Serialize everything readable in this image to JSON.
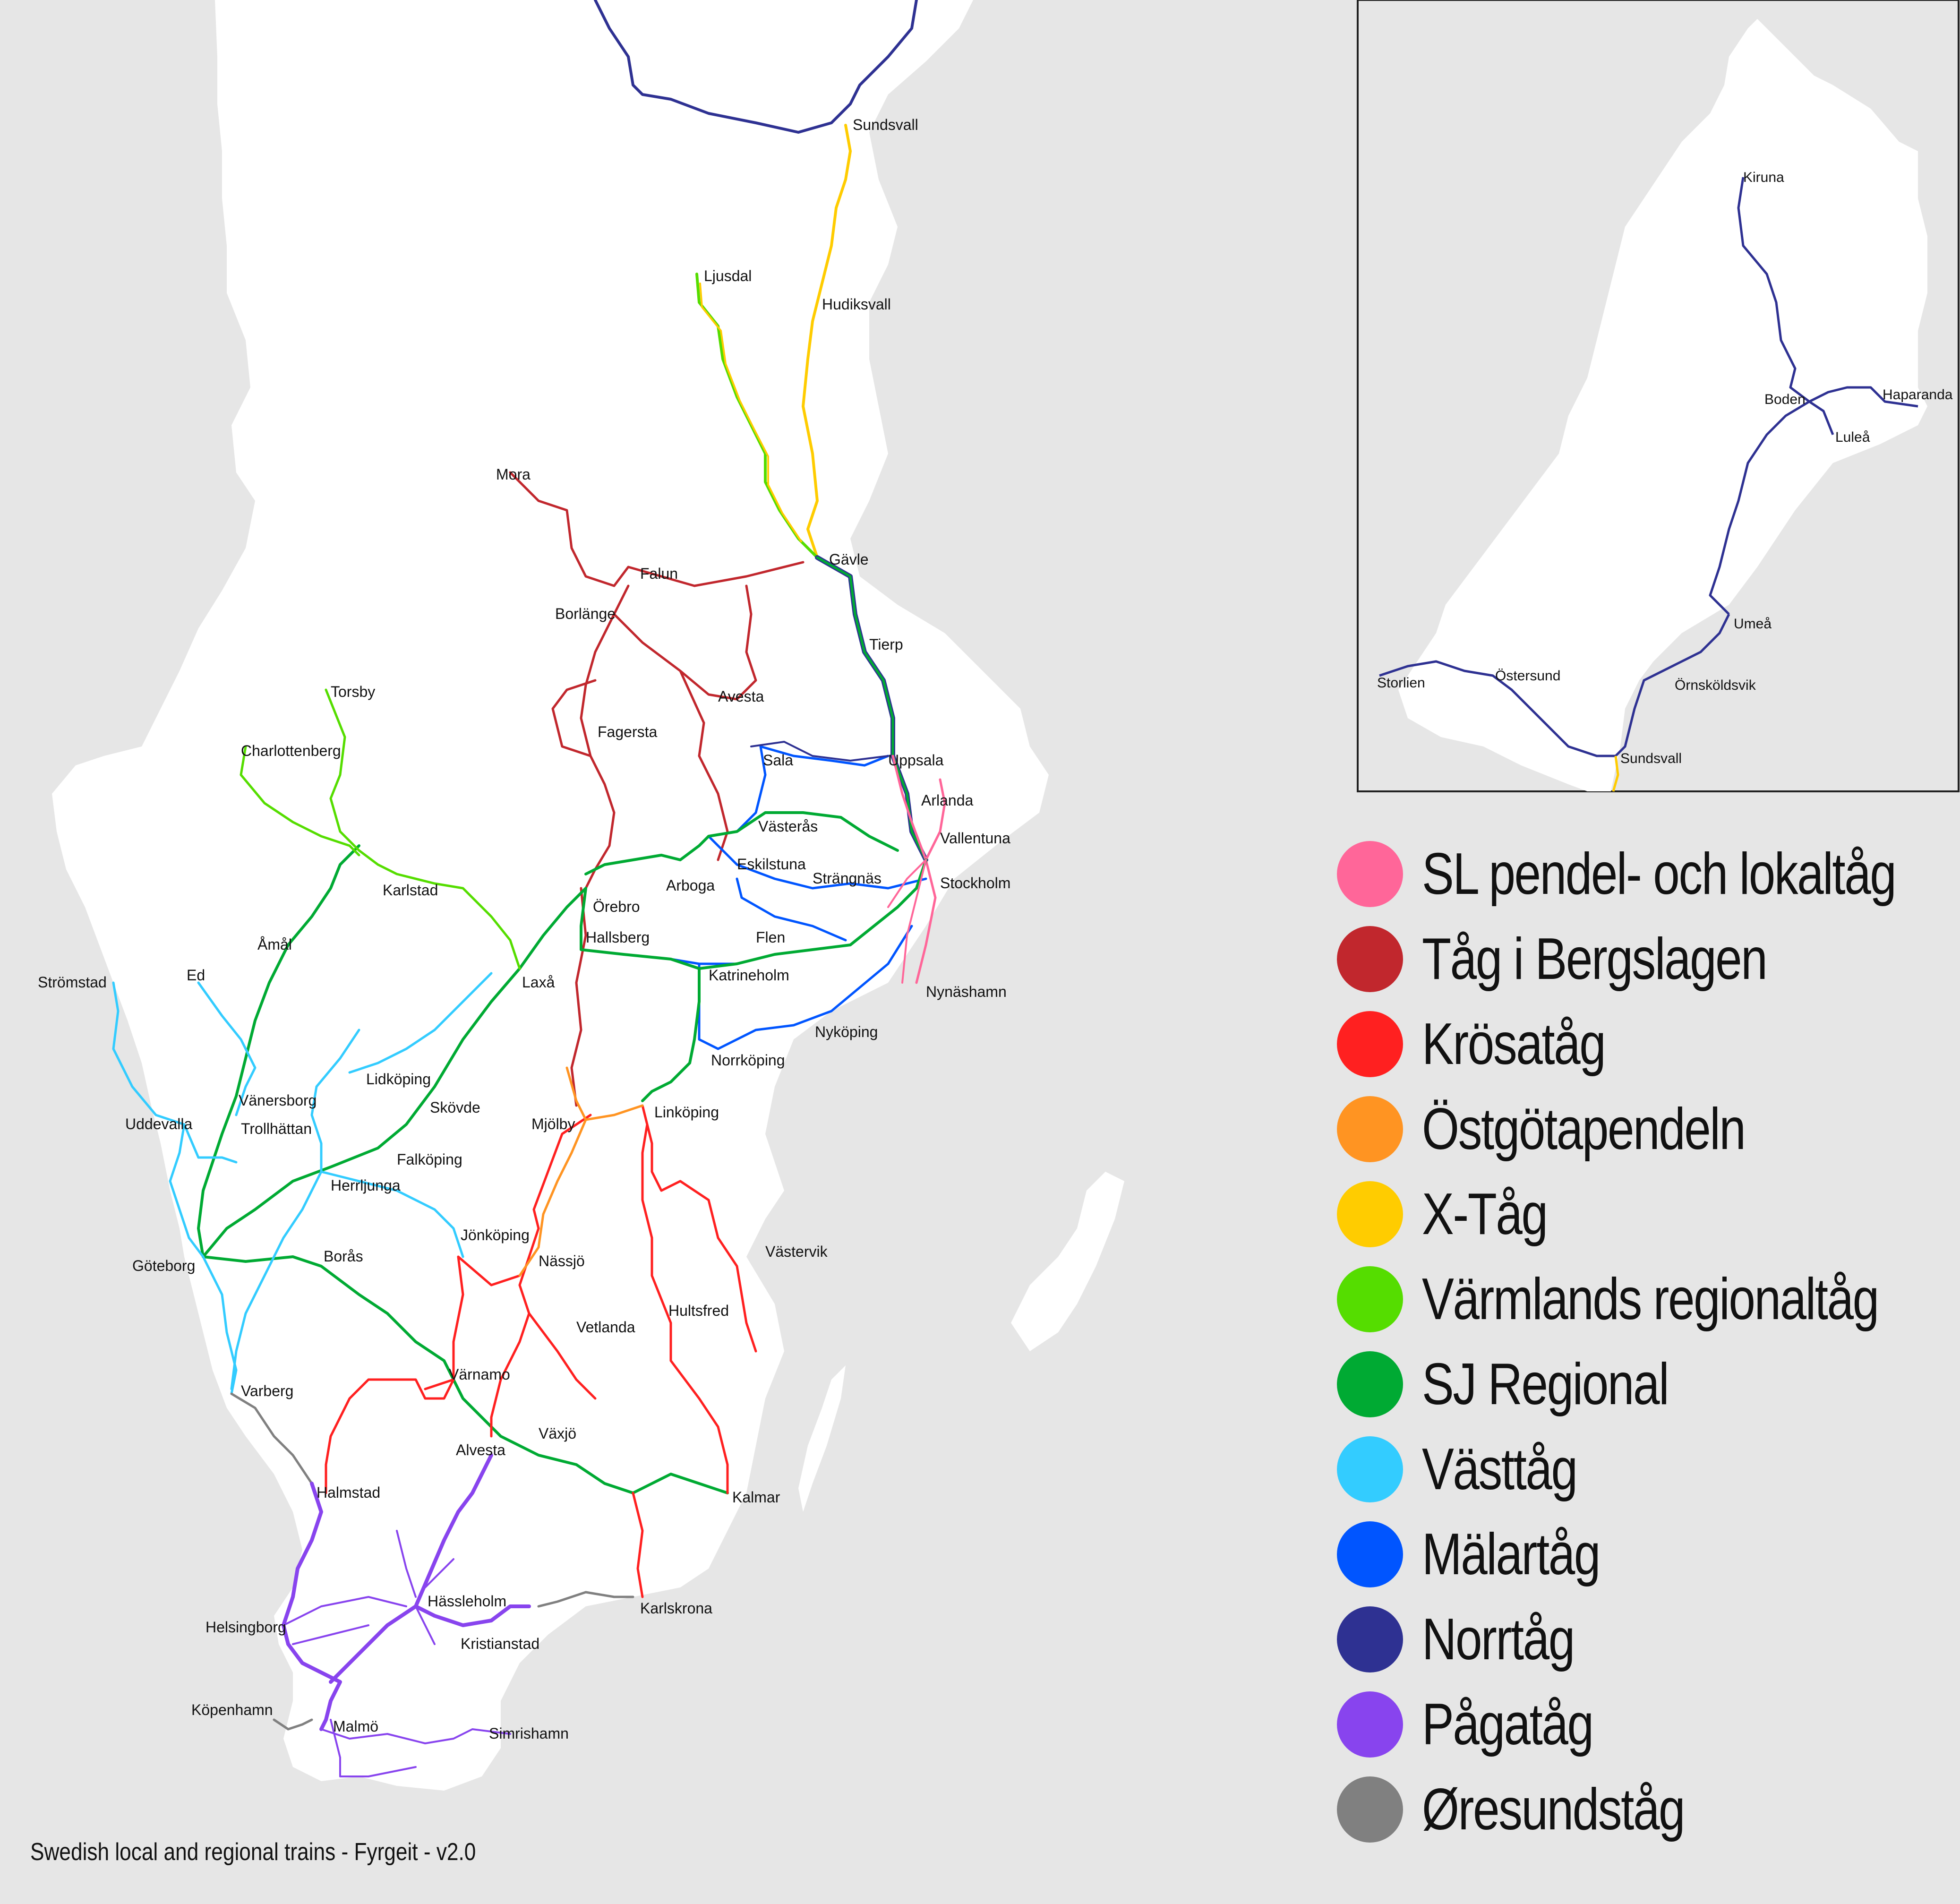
{
  "colors": {
    "sea": "#e6e6e6",
    "land": "#ffffff",
    "sl": "#ff6699",
    "bergslagen": "#c1272d",
    "krosatag": "#ff2020",
    "ostgotapendeln": "#ff9422",
    "xtag": "#ffcc00",
    "varmland": "#55dd00",
    "sj": "#00aa33",
    "vasttag": "#33ccff",
    "malartag": "#0055ff",
    "norrtag": "#2e3192",
    "pagatag": "#8844ee",
    "oresundstag": "#808080"
  },
  "cities": [
    {
      "id": "sundsvall",
      "name": "Sundsvall"
    },
    {
      "id": "ljusdal",
      "name": "Ljusdal"
    },
    {
      "id": "hudiksvall",
      "name": "Hudiksvall"
    },
    {
      "id": "mora",
      "name": "Mora"
    },
    {
      "id": "gavle",
      "name": "Gävle"
    },
    {
      "id": "falun",
      "name": "Falun"
    },
    {
      "id": "borlange",
      "name": "Borlänge"
    },
    {
      "id": "tierp",
      "name": "Tierp"
    },
    {
      "id": "torsby",
      "name": "Torsby"
    },
    {
      "id": "avesta",
      "name": "Avesta"
    },
    {
      "id": "fagersta",
      "name": "Fagersta"
    },
    {
      "id": "charlottenberg",
      "name": "Charlottenberg"
    },
    {
      "id": "sala",
      "name": "Sala"
    },
    {
      "id": "uppsala",
      "name": "Uppsala"
    },
    {
      "id": "arlanda",
      "name": "Arlanda"
    },
    {
      "id": "vasteras",
      "name": "Västerås"
    },
    {
      "id": "vallentuna",
      "name": "Vallentuna"
    },
    {
      "id": "eskilstuna",
      "name": "Eskilstuna"
    },
    {
      "id": "arboga",
      "name": "Arboga"
    },
    {
      "id": "strangnas",
      "name": "Strängnäs"
    },
    {
      "id": "stockholm",
      "name": "Stockholm"
    },
    {
      "id": "karlstad",
      "name": "Karlstad"
    },
    {
      "id": "orebro",
      "name": "Örebro"
    },
    {
      "id": "amal",
      "name": "Åmål"
    },
    {
      "id": "hallsberg",
      "name": "Hallsberg"
    },
    {
      "id": "flen",
      "name": "Flen"
    },
    {
      "id": "stromstad",
      "name": "Strömstad"
    },
    {
      "id": "ed",
      "name": "Ed"
    },
    {
      "id": "laxa",
      "name": "Laxå"
    },
    {
      "id": "katrineholm",
      "name": "Katrineholm"
    },
    {
      "id": "nynashamn",
      "name": "Nynäshamn"
    },
    {
      "id": "nykoping",
      "name": "Nyköping"
    },
    {
      "id": "norrkoping",
      "name": "Norrköping"
    },
    {
      "id": "lidkoping",
      "name": "Lidköping"
    },
    {
      "id": "vanersborg",
      "name": "Vänersborg"
    },
    {
      "id": "skovde",
      "name": "Skövde"
    },
    {
      "id": "linkoping",
      "name": "Linköping"
    },
    {
      "id": "uddevalla",
      "name": "Uddevalla"
    },
    {
      "id": "trollhattan",
      "name": "Trollhättan"
    },
    {
      "id": "mjolby",
      "name": "Mjölby"
    },
    {
      "id": "falkoping",
      "name": "Falköping"
    },
    {
      "id": "herrljunga",
      "name": "Herrljunga"
    },
    {
      "id": "jonkoping",
      "name": "Jönköping"
    },
    {
      "id": "vastervik",
      "name": "Västervik"
    },
    {
      "id": "boras",
      "name": "Borås"
    },
    {
      "id": "goteborg",
      "name": "Göteborg"
    },
    {
      "id": "nassjo",
      "name": "Nässjö"
    },
    {
      "id": "hultsfred",
      "name": "Hultsfred"
    },
    {
      "id": "vetlanda",
      "name": "Vetlanda"
    },
    {
      "id": "varnamo",
      "name": "Värnamo"
    },
    {
      "id": "varberg",
      "name": "Varberg"
    },
    {
      "id": "vaxjo",
      "name": "Växjö"
    },
    {
      "id": "alvesta",
      "name": "Alvesta"
    },
    {
      "id": "kalmar",
      "name": "Kalmar"
    },
    {
      "id": "halmstad",
      "name": "Halmstad"
    },
    {
      "id": "hassleholm",
      "name": "Hässleholm"
    },
    {
      "id": "karlskrona",
      "name": "Karlskrona"
    },
    {
      "id": "helsingborg",
      "name": "Helsingborg"
    },
    {
      "id": "kristianstad",
      "name": "Kristianstad"
    },
    {
      "id": "kopenhamn",
      "name": "Köpenhamn"
    },
    {
      "id": "malmo",
      "name": "Malmö"
    },
    {
      "id": "simrishamn",
      "name": "Simrishamn"
    }
  ],
  "inset": {
    "cities": [
      {
        "id": "kiruna",
        "name": "Kiruna"
      },
      {
        "id": "haparanda",
        "name": "Haparanda"
      },
      {
        "id": "boden",
        "name": "Boden"
      },
      {
        "id": "lulea",
        "name": "Luleå"
      },
      {
        "id": "umea",
        "name": "Umeå"
      },
      {
        "id": "storlien",
        "name": "Storlien"
      },
      {
        "id": "ostersund",
        "name": "Östersund"
      },
      {
        "id": "ornskoldsvik",
        "name": "Örnsköldsvik"
      },
      {
        "id": "sundsvall",
        "name": "Sundsvall"
      }
    ]
  },
  "legend": [
    {
      "label": "SL pendel- och lokaltåg",
      "color": "#ff6699"
    },
    {
      "label": "Tåg i Bergslagen",
      "color": "#c1272d"
    },
    {
      "label": "Krösatåg",
      "color": "#ff2020"
    },
    {
      "label": "Östgötapendeln",
      "color": "#ff9422"
    },
    {
      "label": "X-Tåg",
      "color": "#ffcc00"
    },
    {
      "label": "Värmlands regionaltåg",
      "color": "#55dd00"
    },
    {
      "label": "SJ Regional",
      "color": "#00aa33"
    },
    {
      "label": "Västtåg",
      "color": "#33ccff"
    },
    {
      "label": "Mälartåg",
      "color": "#0055ff"
    },
    {
      "label": "Norrtåg",
      "color": "#2e3192"
    },
    {
      "label": "Pågatåg",
      "color": "#8844ee"
    },
    {
      "label": "Øresundståg",
      "color": "#808080"
    }
  ],
  "credit": "Swedish local and regional trains - Fyrgeit - v2.0"
}
